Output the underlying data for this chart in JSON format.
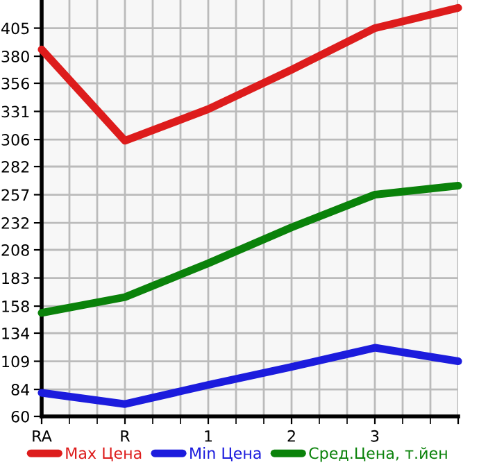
{
  "chart_data": {
    "type": "line",
    "categories": [
      "RA",
      "R",
      "1",
      "2",
      "3",
      null
    ],
    "series": [
      {
        "name": "Max Цена",
        "color": "#dd1c1c",
        "values": [
          386,
          305,
          333,
          368,
          405,
          423
        ]
      },
      {
        "name": "Min Цена",
        "color": "#1c1cdd",
        "values": [
          81,
          71,
          88,
          104,
          121,
          109
        ]
      },
      {
        "name": "Сред.Цена, т.йен",
        "color": "#0a820a",
        "values": [
          152,
          166,
          196,
          228,
          257,
          265
        ]
      }
    ],
    "ylim": [
      60,
      430
    ],
    "yticks": [
      60,
      84,
      109,
      134,
      158,
      183,
      208,
      232,
      257,
      282,
      306,
      331,
      356,
      380,
      405
    ],
    "grid": true,
    "legend": "bottom",
    "marker": "none",
    "line_style": "solid"
  }
}
